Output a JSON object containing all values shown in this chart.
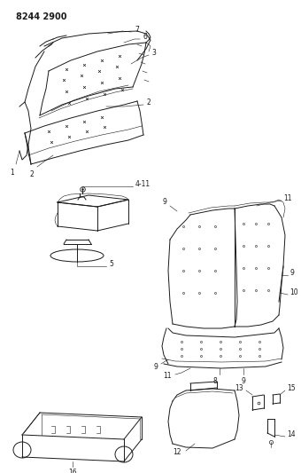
{
  "title": "8244 2900",
  "bg_color": "#ffffff",
  "line_color": "#1a1a1a",
  "fig_width": 3.4,
  "fig_height": 5.33,
  "dpi": 100,
  "label_fontsize": 5.5,
  "title_fontsize": 7.0
}
